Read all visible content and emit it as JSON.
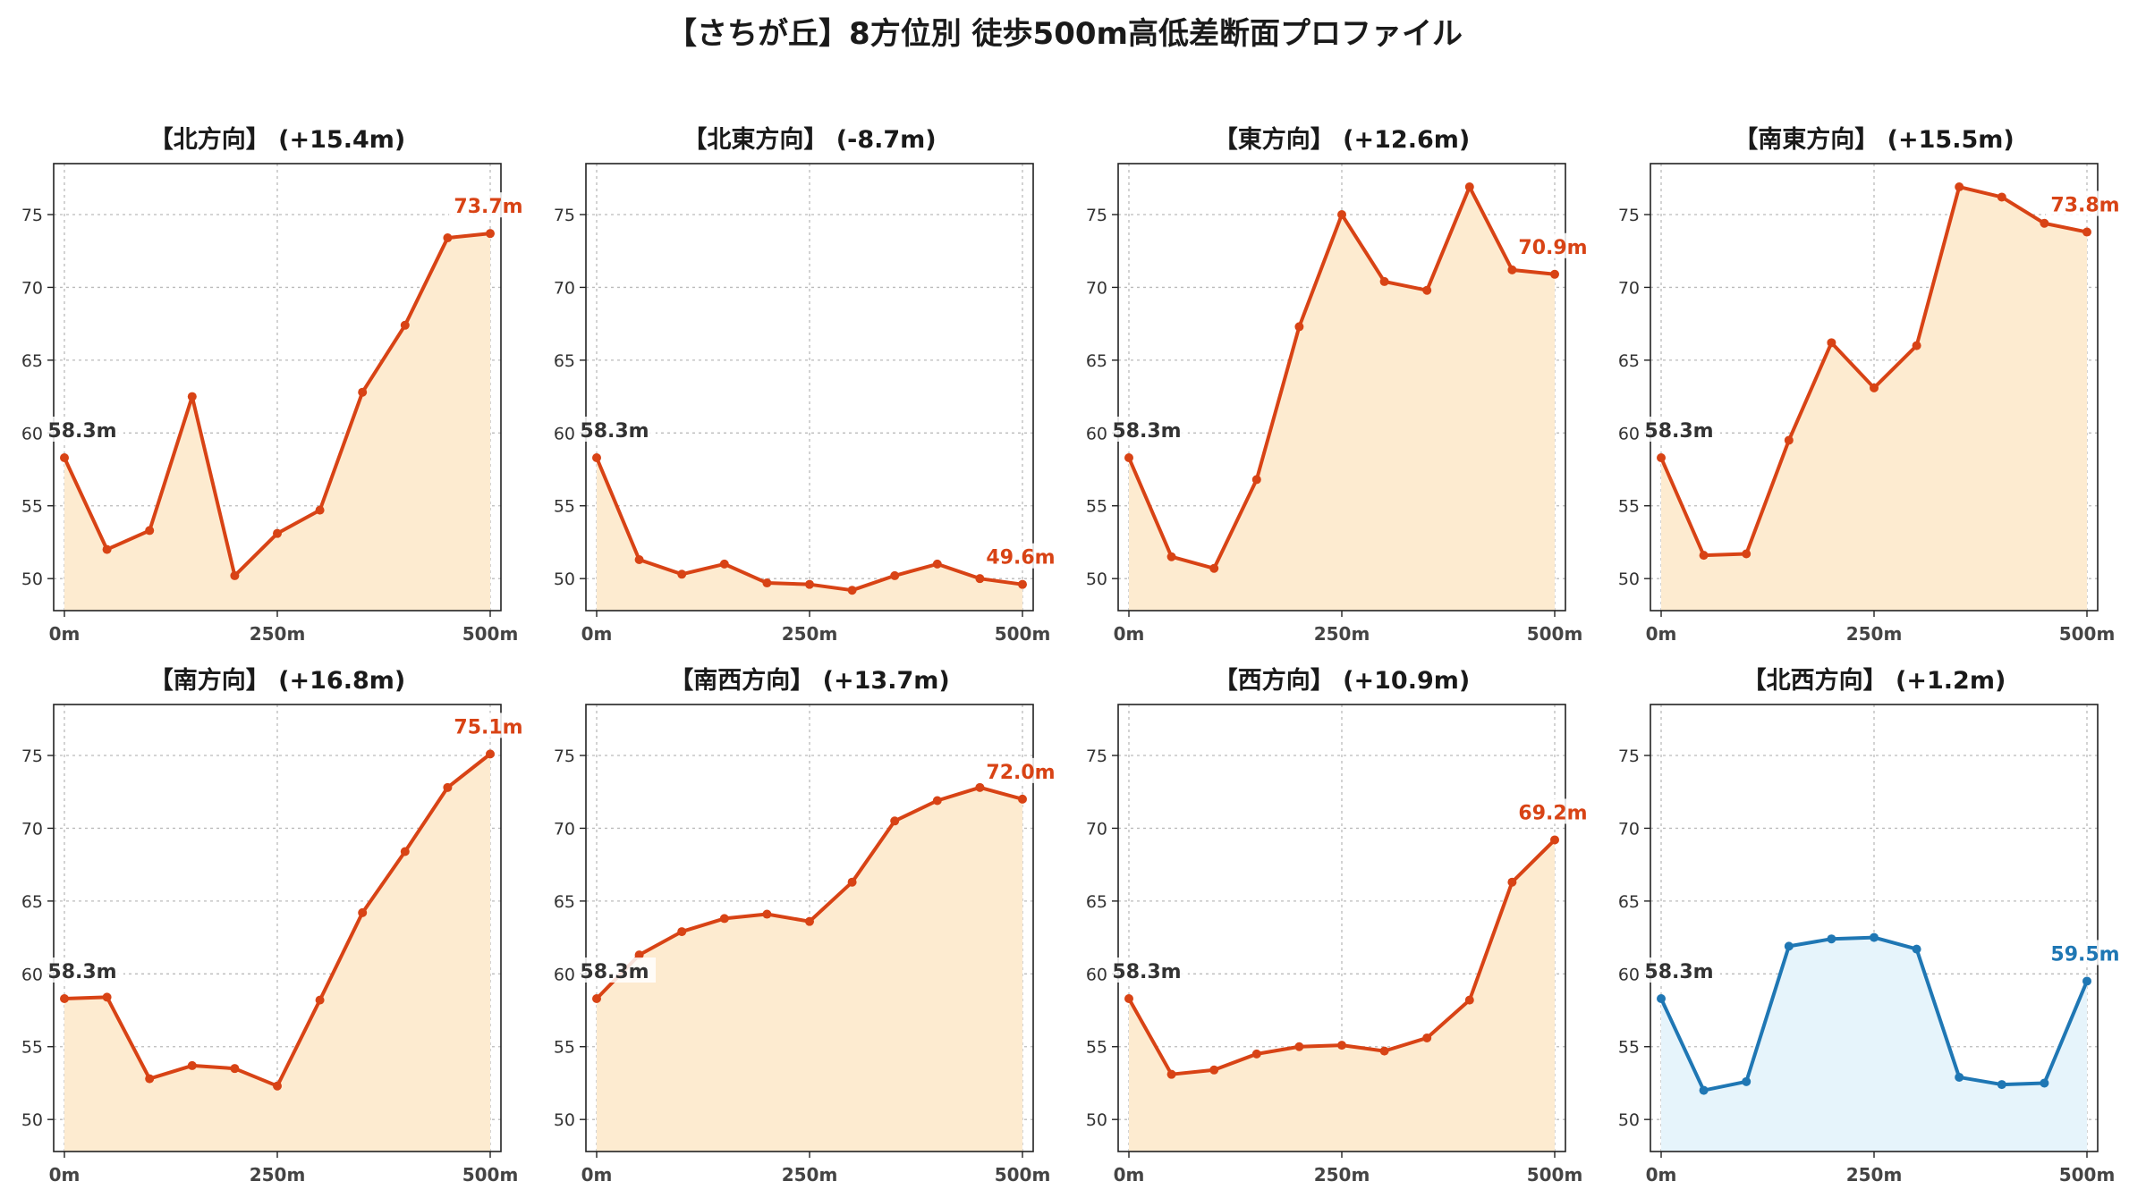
{
  "title": "【さちが丘】8方位別 徒歩500m高低差断面プロファイル",
  "colors": {
    "up_line": "#d84315",
    "up_fill": "#fdebd0",
    "down_line": "#1f77b4",
    "down_fill": "#e6f4fb",
    "start_label": "#333333",
    "grid": "#bbbbbb"
  },
  "chart_data": [
    {
      "type": "line",
      "title": "【北方向】 (+15.4m)",
      "x": [
        0,
        50,
        100,
        150,
        200,
        250,
        300,
        350,
        400,
        450,
        500
      ],
      "values": [
        58.3,
        52.0,
        53.3,
        62.5,
        50.2,
        53.1,
        54.7,
        62.8,
        67.4,
        73.4,
        73.7
      ],
      "start_label": "58.3m",
      "end_label": "73.7m",
      "xticks": [
        "0m",
        "250m",
        "500m"
      ],
      "yticks": [
        50,
        55,
        60,
        65,
        70,
        75
      ],
      "ylim": [
        47.8,
        78.5
      ],
      "grid": true,
      "fill": true
    },
    {
      "type": "line",
      "title": "【北東方向】 (-8.7m)",
      "x": [
        0,
        50,
        100,
        150,
        200,
        250,
        300,
        350,
        400,
        450,
        500
      ],
      "values": [
        58.3,
        51.3,
        50.3,
        51.0,
        49.7,
        49.6,
        49.2,
        50.2,
        51.0,
        50.0,
        49.6
      ],
      "start_label": "58.3m",
      "end_label": "49.6m",
      "xticks": [
        "0m",
        "250m",
        "500m"
      ],
      "yticks": [
        50,
        55,
        60,
        65,
        70,
        75
      ],
      "ylim": [
        47.8,
        78.5
      ],
      "grid": true,
      "fill": true
    },
    {
      "type": "line",
      "title": "【東方向】 (+12.6m)",
      "x": [
        0,
        50,
        100,
        150,
        200,
        250,
        300,
        350,
        400,
        450,
        500
      ],
      "values": [
        58.3,
        51.5,
        50.7,
        56.8,
        67.3,
        75.0,
        70.4,
        69.8,
        76.9,
        71.2,
        70.9
      ],
      "start_label": "58.3m",
      "end_label": "70.9m",
      "xticks": [
        "0m",
        "250m",
        "500m"
      ],
      "yticks": [
        50,
        55,
        60,
        65,
        70,
        75
      ],
      "ylim": [
        47.8,
        78.5
      ],
      "grid": true,
      "fill": true
    },
    {
      "type": "line",
      "title": "【南東方向】 (+15.5m)",
      "x": [
        0,
        50,
        100,
        150,
        200,
        250,
        300,
        350,
        400,
        450,
        500
      ],
      "values": [
        58.3,
        51.6,
        51.7,
        59.5,
        66.2,
        63.1,
        66.0,
        76.9,
        76.2,
        74.4,
        73.8
      ],
      "start_label": "58.3m",
      "end_label": "73.8m",
      "xticks": [
        "0m",
        "250m",
        "500m"
      ],
      "yticks": [
        50,
        55,
        60,
        65,
        70,
        75
      ],
      "ylim": [
        47.8,
        78.5
      ],
      "grid": true,
      "fill": true
    },
    {
      "type": "line",
      "title": "【南方向】 (+16.8m)",
      "x": [
        0,
        50,
        100,
        150,
        200,
        250,
        300,
        350,
        400,
        450,
        500
      ],
      "values": [
        58.3,
        58.4,
        52.8,
        53.7,
        53.5,
        52.3,
        58.2,
        64.2,
        68.4,
        72.8,
        75.1
      ],
      "start_label": "58.3m",
      "end_label": "75.1m",
      "xticks": [
        "0m",
        "250m",
        "500m"
      ],
      "yticks": [
        50,
        55,
        60,
        65,
        70,
        75
      ],
      "ylim": [
        47.8,
        78.5
      ],
      "grid": true,
      "fill": true
    },
    {
      "type": "line",
      "title": "【南西方向】 (+13.7m)",
      "x": [
        0,
        50,
        100,
        150,
        200,
        250,
        300,
        350,
        400,
        450,
        500
      ],
      "values": [
        58.3,
        61.3,
        62.9,
        63.8,
        64.1,
        63.6,
        66.3,
        70.5,
        71.9,
        72.8,
        72.0
      ],
      "start_label": "58.3m",
      "end_label": "72.0m",
      "xticks": [
        "0m",
        "250m",
        "500m"
      ],
      "yticks": [
        50,
        55,
        60,
        65,
        70,
        75
      ],
      "ylim": [
        47.8,
        78.5
      ],
      "grid": true,
      "fill": true
    },
    {
      "type": "line",
      "title": "【西方向】 (+10.9m)",
      "x": [
        0,
        50,
        100,
        150,
        200,
        250,
        300,
        350,
        400,
        450,
        500
      ],
      "values": [
        58.3,
        53.1,
        53.4,
        54.5,
        55.0,
        55.1,
        54.7,
        55.6,
        58.2,
        66.3,
        69.2
      ],
      "start_label": "58.3m",
      "end_label": "69.2m",
      "xticks": [
        "0m",
        "250m",
        "500m"
      ],
      "yticks": [
        50,
        55,
        60,
        65,
        70,
        75
      ],
      "ylim": [
        47.8,
        78.5
      ],
      "grid": true,
      "fill": true
    },
    {
      "type": "line",
      "title": "【北西方向】 (+1.2m)",
      "x": [
        0,
        50,
        100,
        150,
        200,
        250,
        300,
        350,
        400,
        450,
        500
      ],
      "values": [
        58.3,
        52.0,
        52.6,
        61.9,
        62.4,
        62.5,
        61.7,
        52.9,
        52.4,
        52.5,
        59.5
      ],
      "start_label": "58.3m",
      "end_label": "59.5m",
      "xticks": [
        "0m",
        "250m",
        "500m"
      ],
      "yticks": [
        50,
        55,
        60,
        65,
        70,
        75
      ],
      "ylim": [
        47.8,
        78.5
      ],
      "grid": true,
      "fill": true,
      "color_scheme": "down"
    }
  ]
}
